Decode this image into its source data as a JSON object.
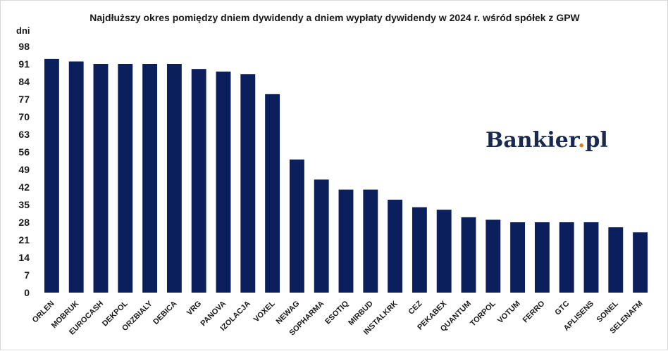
{
  "chart_data": {
    "type": "bar",
    "title": "Najdłuższy okres pomiędzy dniem dywidendy a dniem wypłaty dywidendy w 2024 r. wśród spółek z GPW",
    "ylabel": "dni",
    "xlabel": "",
    "ylim": [
      0,
      98
    ],
    "yticks": [
      0,
      7,
      14,
      21,
      28,
      35,
      42,
      49,
      56,
      63,
      70,
      77,
      84,
      91,
      98
    ],
    "grid": false,
    "legend": "none",
    "bar_color": "#0b1f5c",
    "categories": [
      "ORLEN",
      "MOBRUK",
      "EUROCASH",
      "DEKPOL",
      "ORZBIALY",
      "DEBICA",
      "VRG",
      "PANOVA",
      "IZOLACJA",
      "VOXEL",
      "NEWAG",
      "SOPHARMA",
      "ESOTIQ",
      "MIRBUD",
      "INSTALKRK",
      "CEZ",
      "PEKABEX",
      "QUANTUM",
      "TORPOL",
      "VOTUM",
      "FERRO",
      "GTC",
      "APLISENS",
      "SONEL",
      "SELENAFM"
    ],
    "values": [
      93,
      92,
      91,
      91,
      91,
      91,
      89,
      88,
      87,
      79,
      53,
      45,
      41,
      41,
      37,
      34,
      33,
      30,
      29,
      28,
      28,
      28,
      28,
      26,
      24
    ]
  },
  "brand": {
    "name": "Bankier",
    "dot": ".",
    "tld": "pl",
    "color": "#1a2a4f",
    "dot_color": "#e07a1f"
  }
}
